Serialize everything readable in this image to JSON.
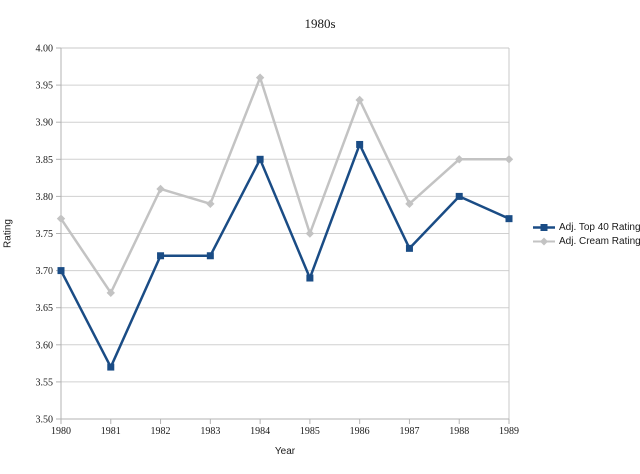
{
  "chart_data": {
    "type": "line",
    "title": "1980s",
    "xlabel": "Year",
    "ylabel": "Rating",
    "categories": [
      "1980",
      "1981",
      "1982",
      "1983",
      "1984",
      "1985",
      "1986",
      "1987",
      "1988",
      "1989"
    ],
    "series": [
      {
        "name": "Adj. Top 40 Rating",
        "color": "#1a4c85",
        "marker": "square",
        "values": [
          3.7,
          3.57,
          3.72,
          3.72,
          3.85,
          3.69,
          3.87,
          3.73,
          3.8,
          3.77
        ]
      },
      {
        "name": "Adj. Cream Rating",
        "color": "#c3c3c3",
        "marker": "diamond",
        "values": [
          3.77,
          3.67,
          3.81,
          3.79,
          3.96,
          3.75,
          3.93,
          3.79,
          3.85,
          3.85
        ]
      }
    ],
    "ylim": [
      3.5,
      4.0
    ],
    "ytick_step": 0.05,
    "ytick_labels": [
      "3.50",
      "3.55",
      "3.60",
      "3.65",
      "3.70",
      "3.75",
      "3.80",
      "3.85",
      "3.90",
      "3.95",
      "4.00"
    ],
    "grid": "horizontal",
    "legend_position": "right",
    "colors": {
      "gridline": "#d0d0d0",
      "plot_border": "#c8c8c8",
      "axis": "#b3b3b3",
      "text": "#1a1a1a",
      "background": "#ffffff"
    }
  }
}
